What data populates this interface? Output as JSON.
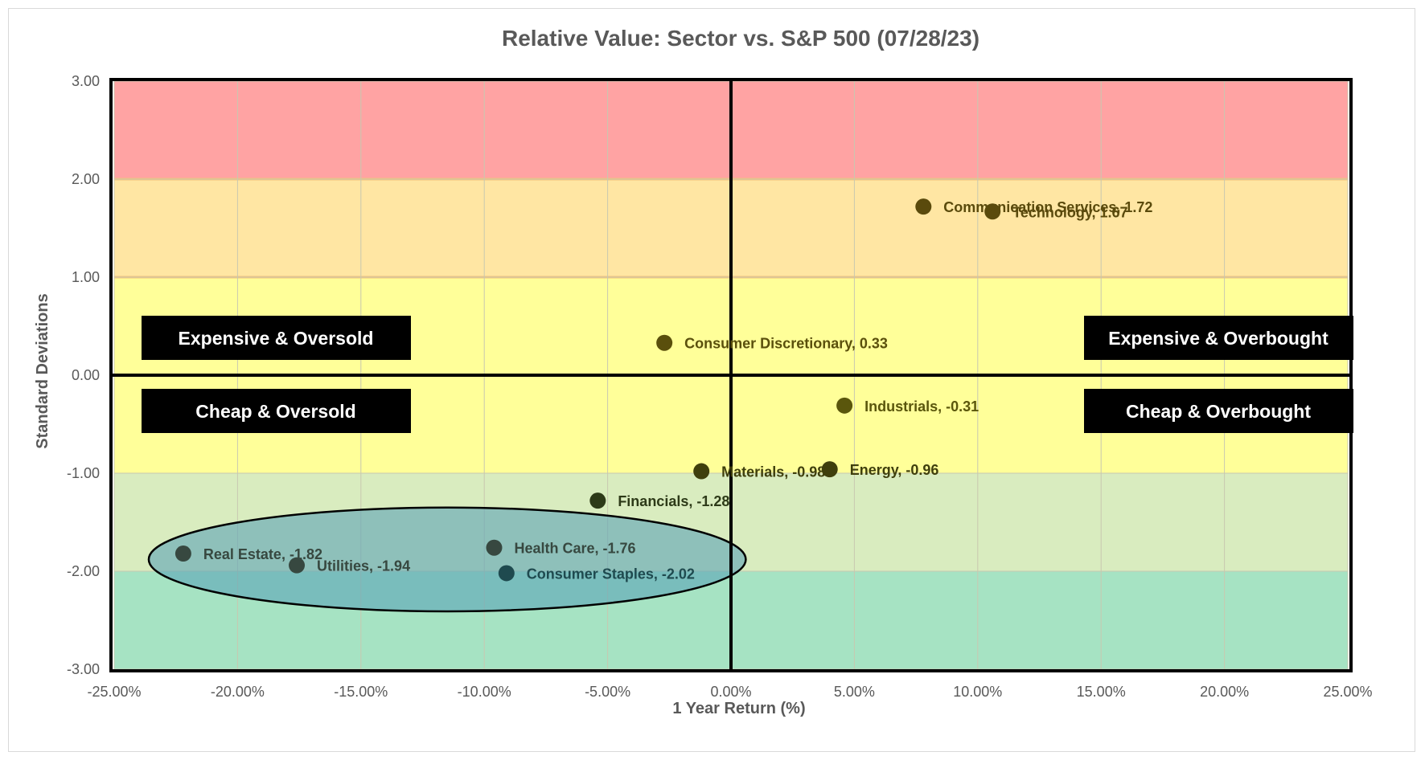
{
  "chart_data": {
    "type": "scatter",
    "title": "Relative Value: Sector vs. S&P 500 (07/28/23)",
    "xlabel": "1 Year Return (%)",
    "ylabel": "Standard Deviations",
    "xlim": [
      -25,
      25
    ],
    "ylim": [
      -3,
      3
    ],
    "x_ticks": [
      "-25.00%",
      "-20.00%",
      "-15.00%",
      "-10.00%",
      "-5.00%",
      "0.00%",
      "5.00%",
      "10.00%",
      "15.00%",
      "20.00%",
      "25.00%"
    ],
    "y_ticks": [
      "3.00",
      "2.00",
      "1.00",
      "0.00",
      "-1.00",
      "-2.00",
      "-3.00"
    ],
    "grid": true,
    "bands": [
      {
        "from": 2,
        "to": 3,
        "color": "#ffa3a3"
      },
      {
        "from": 1,
        "to": 2,
        "color": "#ffe6a3"
      },
      {
        "from": -1,
        "to": 1,
        "color": "#ffff99"
      },
      {
        "from": -2,
        "to": -1,
        "color": "#d9ecbf"
      },
      {
        "from": -3,
        "to": -2,
        "color": "#a6e3c3"
      }
    ],
    "points": [
      {
        "x": 7.8,
        "y": 1.72,
        "label": "Communication Services, 1.72",
        "color": "#5a4a0c"
      },
      {
        "x": 10.6,
        "y": 1.67,
        "label": "Technology, 1.67",
        "color": "#5a4a0c"
      },
      {
        "x": -2.7,
        "y": 0.33,
        "label": "Consumer Discretionary, 0.33",
        "color": "#5a4f0c"
      },
      {
        "x": 4.6,
        "y": -0.31,
        "label": "Industrials, -0.31",
        "color": "#5a560c"
      },
      {
        "x": 4.0,
        "y": -0.96,
        "label": "Energy, -0.96",
        "color": "#3f3f0d"
      },
      {
        "x": -1.2,
        "y": -0.98,
        "label": "Materials, -0.98",
        "color": "#3f3f0d"
      },
      {
        "x": -5.4,
        "y": -1.28,
        "label": "Financials, -1.28",
        "color": "#2d3a18"
      },
      {
        "x": -22.2,
        "y": -1.82,
        "label": "Real Estate, -1.82",
        "color": "#374840"
      },
      {
        "x": -17.6,
        "y": -1.94,
        "label": "Utilities, -1.94",
        "color": "#374840"
      },
      {
        "x": -9.6,
        "y": -1.76,
        "label": "Health Care, -1.76",
        "color": "#374840"
      },
      {
        "x": -9.1,
        "y": -2.02,
        "label": "Consumer Staples, -2.02",
        "color": "#1f4a4f"
      }
    ],
    "highlight_ellipse": {
      "cx": -11.5,
      "cy": -1.88,
      "rx": 12.1,
      "ry": 0.53,
      "color": "#5ba3b8"
    },
    "quadrant_labels": {
      "top_left": "Expensive & Oversold",
      "top_right": "Expensive & Overbought",
      "bottom_left": "Cheap & Oversold",
      "bottom_right": "Cheap & Overbought"
    }
  }
}
